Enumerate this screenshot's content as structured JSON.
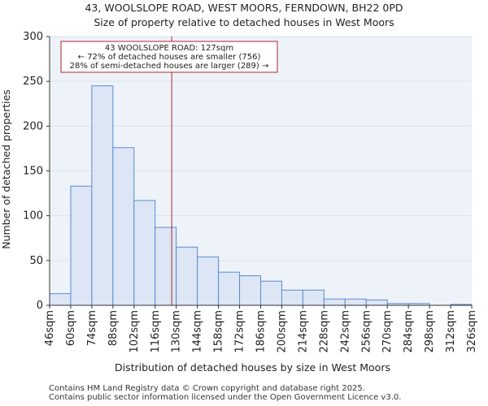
{
  "header": {
    "title_line1": "43, WOOLSLOPE ROAD, WEST MOORS, FERNDOWN, BH22 0PD",
    "title_line2": "Size of property relative to detached houses in West Moors"
  },
  "footer": {
    "line1": "Contains HM Land Registry data © Crown copyright and database right 2025.",
    "line2": "Contains public sector information licensed under the Open Government Licence v3.0."
  },
  "colors": {
    "bar_fill": "#dce6f5",
    "bar_stroke": "#5b8bd0",
    "marker": "#b0242c",
    "grid": "#dbe3ef",
    "plot_bg": "#eef3fa"
  },
  "chart_data": {
    "type": "bar",
    "xlabel": "Distribution of detached houses by size in West Moors",
    "ylabel": "Number of detached properties",
    "ylim": [
      0,
      300
    ],
    "yticks": [
      0,
      50,
      100,
      150,
      200,
      250,
      300
    ],
    "bin_start": 46,
    "bin_width": 14,
    "tick_labels": [
      "46sqm",
      "60sqm",
      "74sqm",
      "88sqm",
      "102sqm",
      "116sqm",
      "130sqm",
      "144sqm",
      "158sqm",
      "172sqm",
      "186sqm",
      "200sqm",
      "214sqm",
      "228sqm",
      "242sqm",
      "256sqm",
      "270sqm",
      "284sqm",
      "298sqm",
      "312sqm",
      "326sqm"
    ],
    "values": [
      13,
      133,
      245,
      176,
      117,
      87,
      65,
      54,
      37,
      33,
      27,
      17,
      17,
      7,
      7,
      6,
      2,
      2,
      0,
      1
    ],
    "property_size": 127,
    "annotation": {
      "line1": "43 WOOLSLOPE ROAD: 127sqm",
      "line2": "← 72% of detached houses are smaller (756)",
      "line3": "28% of semi-detached houses are larger (289) →"
    }
  }
}
